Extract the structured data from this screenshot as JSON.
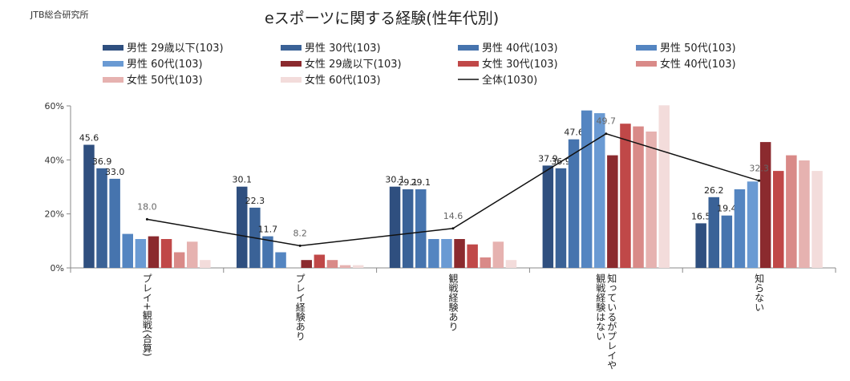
{
  "source": "JTB総合研究所",
  "chart_data": {
    "type": "bar",
    "title": "eスポーツに関する経験(性年代別)",
    "categories": [
      "プレイ+観戦(合算)",
      "プレイ経験あり",
      "観戦経験あり",
      "知っているがプレイや観戦経験はない",
      "知らない"
    ],
    "category_lines": [
      [
        "プレイ+観戦(合算)"
      ],
      [
        "プレイ経験あり"
      ],
      [
        "観戦経験あり"
      ],
      [
        "知っているがプレイや",
        "観戦経験はない"
      ],
      [
        "知らない"
      ]
    ],
    "ylim": [
      0,
      60
    ],
    "yticks": [
      0,
      20,
      40,
      60
    ],
    "ytick_labels": [
      "0%",
      "20%",
      "40%",
      "60%"
    ],
    "series": [
      {
        "name": "男性 29歳以下(103)",
        "color": "#2f4f7f",
        "values": [
          45.6,
          30.1,
          30.1,
          37.9,
          16.5
        ],
        "labels": [
          "45.6",
          "30.1",
          "30.1",
          "37.9",
          "16.5"
        ]
      },
      {
        "name": "男性 30代(103)",
        "color": "#3a6297",
        "values": [
          36.9,
          22.3,
          29.1,
          36.9,
          26.2
        ],
        "labels": [
          "36.9",
          "22.3",
          "29.1",
          "36.9",
          "26.2"
        ]
      },
      {
        "name": "男性 40代(103)",
        "color": "#4674ae",
        "values": [
          33.0,
          11.7,
          29.1,
          47.6,
          19.4
        ],
        "labels": [
          "33.0",
          "11.7",
          "29.1",
          "47.6",
          "19.4"
        ]
      },
      {
        "name": "男性 50代(103)",
        "color": "#5485c1",
        "values": [
          12.6,
          5.8,
          10.7,
          58.3,
          29.1
        ],
        "labels": [
          "",
          "",
          "",
          "",
          ""
        ]
      },
      {
        "name": "男性 60代(103)",
        "color": "#6a9ad3",
        "values": [
          10.7,
          0,
          10.7,
          57.3,
          32.0
        ],
        "labels": [
          "",
          "",
          "",
          "",
          ""
        ]
      },
      {
        "name": "女性 29歳以下(103)",
        "color": "#8b2a2e",
        "values": [
          11.7,
          2.9,
          10.7,
          41.7,
          46.6
        ],
        "labels": [
          "",
          "",
          "",
          "",
          ""
        ]
      },
      {
        "name": "女性 30代(103)",
        "color": "#c04848",
        "values": [
          10.7,
          4.9,
          8.7,
          53.4,
          35.9
        ],
        "labels": [
          "",
          "",
          "",
          "",
          ""
        ]
      },
      {
        "name": "女性 40代(103)",
        "color": "#d98a88",
        "values": [
          5.8,
          2.9,
          3.9,
          52.4,
          41.7
        ],
        "labels": [
          "",
          "",
          "",
          "",
          ""
        ]
      },
      {
        "name": "女性 50代(103)",
        "color": "#e6b2b0",
        "values": [
          9.7,
          1.0,
          9.7,
          50.5,
          39.8
        ],
        "labels": [
          "",
          "",
          "",
          "",
          ""
        ]
      },
      {
        "name": "女性 60代(103)",
        "color": "#f3dcdb",
        "values": [
          2.9,
          1.0,
          2.9,
          60.2,
          35.9
        ],
        "labels": [
          "",
          "",
          "",
          "",
          ""
        ]
      }
    ],
    "line_series": {
      "name": "全体(1030)",
      "color": "#111111",
      "values": [
        18.0,
        8.2,
        14.6,
        49.7,
        32.3
      ],
      "labels": [
        "18.0",
        "8.2",
        "14.6",
        "49.7",
        "32.3"
      ]
    }
  }
}
